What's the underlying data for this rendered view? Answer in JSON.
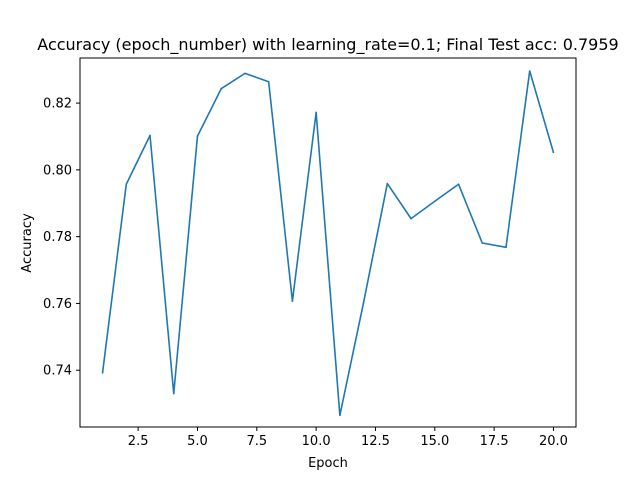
{
  "chart_data": {
    "type": "line",
    "title": "Accuracy (epoch_number) with learning_rate=0.1; Final Test acc: 0.7959",
    "xlabel": "Epoch",
    "ylabel": "Accuracy",
    "xlim": [
      0.05,
      20.95
    ],
    "ylim": [
      0.723,
      0.8335
    ],
    "xticks": [
      2.5,
      5.0,
      7.5,
      10.0,
      12.5,
      15.0,
      17.5,
      20.0
    ],
    "xtick_labels": [
      "2.5",
      "5.0",
      "7.5",
      "10.0",
      "12.5",
      "15.0",
      "17.5",
      "20.0"
    ],
    "yticks": [
      0.74,
      0.76,
      0.78,
      0.8,
      0.82
    ],
    "ytick_labels": [
      "0.74",
      "0.76",
      "0.78",
      "0.80",
      "0.82"
    ],
    "grid": false,
    "series": [
      {
        "color": "#1f77b4",
        "x": [
          1,
          2,
          3,
          4,
          5,
          6,
          7,
          8,
          9,
          10,
          11,
          12,
          13,
          14,
          15,
          16,
          17,
          18,
          19,
          20
        ],
        "y": [
          0.7392,
          0.7957,
          0.8103,
          0.733,
          0.8101,
          0.8243,
          0.8289,
          0.8264,
          0.7607,
          0.8172,
          0.7265,
          0.7603,
          0.7959,
          0.7854,
          0.7906,
          0.7957,
          0.7781,
          0.7768,
          0.8296,
          0.8052
        ]
      }
    ]
  }
}
